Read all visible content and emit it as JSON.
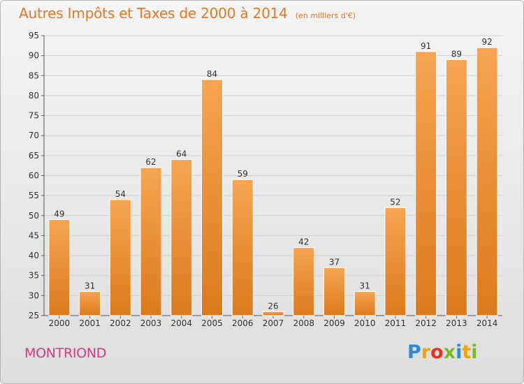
{
  "header": {
    "title": "Autres Impôts et Taxes de 2000 à 2014",
    "unit": "(en milliers d'€)"
  },
  "commune": "MONTRIOND",
  "logo": {
    "text": "Proxiti",
    "letters": [
      "P",
      "r",
      "o",
      "x",
      "i",
      "t",
      "i"
    ]
  },
  "colors": {
    "title": "#e87722",
    "commune": "#d43a86",
    "bar_top": "#f6a552",
    "bar_bottom": "#db7a1c",
    "grid": "#cfcfcf"
  },
  "chart_data": {
    "type": "bar",
    "title": "Autres Impôts et Taxes de 2000 à 2014",
    "subtitle": "(en milliers d'€)",
    "xlabel": "",
    "ylabel": "",
    "categories": [
      "2000",
      "2001",
      "2002",
      "2003",
      "2004",
      "2005",
      "2006",
      "2007",
      "2008",
      "2009",
      "2010",
      "2011",
      "2012",
      "2013",
      "2014"
    ],
    "values": [
      49,
      31,
      54,
      62,
      64,
      84,
      59,
      26,
      42,
      37,
      31,
      52,
      91,
      89,
      92
    ],
    "ylim": [
      25,
      95
    ],
    "yticks": [
      25,
      30,
      35,
      40,
      45,
      50,
      55,
      60,
      65,
      70,
      75,
      80,
      85,
      90,
      95
    ],
    "grid": true,
    "legend": "none"
  }
}
